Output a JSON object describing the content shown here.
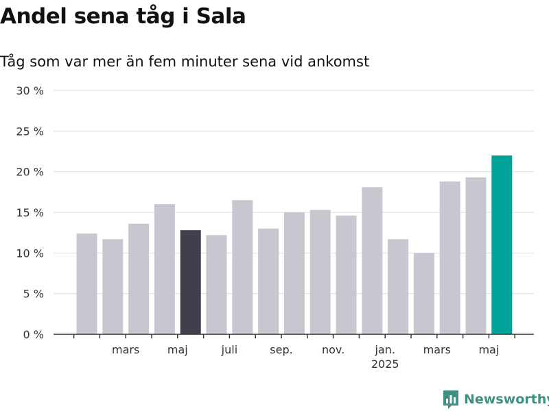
{
  "header": {
    "title": "Andel sena tåg i Sala",
    "subtitle": "Tåg som var mer än fem minuter sena vid ankomst"
  },
  "brand": {
    "name": "Newsworthy",
    "icon": "bar-chart-logo-icon",
    "color": "#3f8f83"
  },
  "colors": {
    "default_bar": "#c8c7d0",
    "highlight_bar": "#403f4c",
    "latest_bar": "#00a398",
    "grid": "#dddddd",
    "axis": "#333333"
  },
  "chart_data": {
    "type": "bar",
    "title": "Andel sena tåg i Sala",
    "subtitle": "Tåg som var mer än fem minuter sena vid ankomst",
    "ylim": [
      0,
      30
    ],
    "yticks": [
      0,
      5,
      10,
      15,
      20,
      25,
      30
    ],
    "ytick_labels": [
      "0 %",
      "5 %",
      "10 %",
      "15 %",
      "20 %",
      "25 %",
      "30 %"
    ],
    "values": [
      12.4,
      11.7,
      13.6,
      16.0,
      12.8,
      12.2,
      16.5,
      13.0,
      15.0,
      15.3,
      14.6,
      18.1,
      11.7,
      10.0,
      18.8,
      19.3,
      22.0
    ],
    "bar_styles": [
      "default",
      "default",
      "default",
      "default",
      "highlight",
      "default",
      "default",
      "default",
      "default",
      "default",
      "default",
      "default",
      "default",
      "default",
      "default",
      "default",
      "latest"
    ],
    "x_tick_labels": [
      {
        "index": 2,
        "label": "mars"
      },
      {
        "index": 4,
        "label": "maj"
      },
      {
        "index": 6,
        "label": "juli"
      },
      {
        "index": 8,
        "label": "sep."
      },
      {
        "index": 10,
        "label": "nov."
      },
      {
        "index": 12,
        "label": "jan.",
        "sublabel": "2025"
      },
      {
        "index": 14,
        "label": "mars"
      },
      {
        "index": 16,
        "label": "maj"
      }
    ],
    "grid": true,
    "legend": "none"
  }
}
